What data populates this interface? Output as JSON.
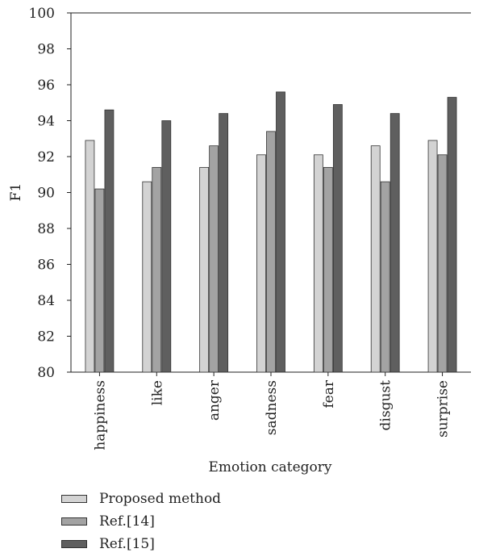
{
  "chart_data": {
    "type": "bar",
    "categories": [
      "happiness",
      "like",
      "anger",
      "sadness",
      "fear",
      "disgust",
      "surprise"
    ],
    "series": [
      {
        "name": "Proposed method",
        "values": [
          92.9,
          90.6,
          91.4,
          92.1,
          92.1,
          92.6,
          92.9
        ],
        "color": "#d3d3d3"
      },
      {
        "name": "Ref.[14]",
        "values": [
          90.2,
          91.4,
          92.6,
          93.4,
          91.4,
          90.6,
          92.1
        ],
        "color": "#a3a3a3"
      },
      {
        "name": "Ref.[15]",
        "values": [
          94.6,
          94.0,
          94.4,
          95.6,
          94.9,
          94.4,
          95.3
        ],
        "color": "#5f5f5f"
      }
    ],
    "ylim": [
      80,
      100
    ],
    "yticks": [
      "80",
      "82",
      "84",
      "86",
      "88",
      "90",
      "92",
      "94",
      "96",
      "98",
      "100"
    ],
    "xlabel": "Emotion category",
    "ylabel": "F1",
    "grid": false,
    "legend_position": "bottom-left"
  }
}
